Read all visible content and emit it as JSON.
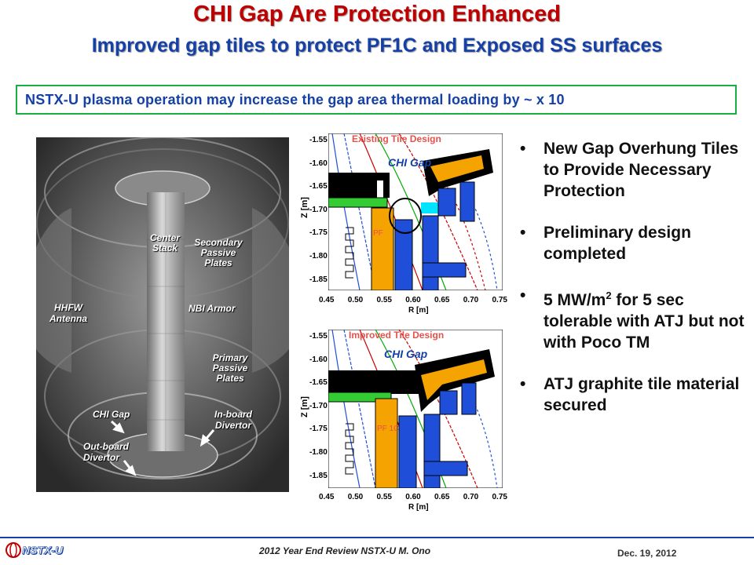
{
  "header": {
    "title": "CHI Gap Are Protection Enhanced",
    "subtitle": "Improved gap tiles to protect PF1C and Exposed SS surfaces"
  },
  "banner": "NSTX-U plasma operation may increase the gap area thermal loading by ~ x 10",
  "photo_labels": {
    "center_stack": "Center Stack",
    "secondary_passive_plates": "Secondary Passive Plates",
    "hhfw_antenna": "HHFW Antenna",
    "nbi_armor": "NBI Armor",
    "primary_passive_plates": "Primary Passive Plates",
    "chi_gap": "CHI Gap",
    "inboard_divertor": "In-board Divertor",
    "outboard_divertor": "Out-board Divertor"
  },
  "plots": {
    "top_title": "Existing Tile Design",
    "bottom_title": "Improved Tile Design",
    "chi_gap_label": "CHI Gap",
    "pf_label_top": "PF",
    "pf_label_bottom": "PF 1C",
    "ylabel": "Z [m]",
    "xlabel": "R [m]",
    "y_ticks": [
      "-1.55",
      "-1.60",
      "-1.65",
      "-1.70",
      "-1.75",
      "-1.80",
      "-1.85"
    ],
    "x_ticks": [
      "0.45",
      "0.50",
      "0.55",
      "0.60",
      "0.65",
      "0.70",
      "0.75"
    ]
  },
  "bullets": [
    "New Gap Overhung Tiles to Provide Necessary Protection",
    "Preliminary design completed",
    "5 MW/m",
    "ATJ graphite tile material secured"
  ],
  "bullet3": {
    "superscript": "2",
    "rest": " for 5 sec tolerable with ATJ but not with Poco TM"
  },
  "footer": {
    "logo": "NSTX-U",
    "center": "2012 Year End Review NSTX-U M. Ono",
    "date": "Dec. 19, 2012"
  },
  "colors": {
    "title": "#c00000",
    "subtitle": "#1540a8",
    "banner_border": "#17b043",
    "tile_orange": "#f5a300",
    "coil_blue": "#1f4fd8",
    "tile_green": "#33cc33"
  }
}
